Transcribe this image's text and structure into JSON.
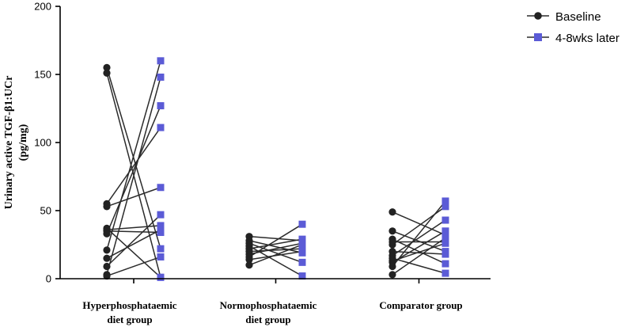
{
  "chart_data": {
    "type": "scatter",
    "title": "",
    "ylabel_line1": "Urinary active TGF-β1:UCr",
    "ylabel_line2": "(pg/mg)",
    "xlabel": "",
    "ylim": [
      0,
      200
    ],
    "yticks": [
      "0",
      "50",
      "100",
      "150",
      "200"
    ],
    "categories": [
      {
        "line1": "Hyperphosphataemic",
        "line2": "diet group"
      },
      {
        "line1": "Normophosphataemic",
        "line2": "diet group"
      },
      {
        "line1": "Comparator group",
        "line2": ""
      }
    ],
    "legend": {
      "position": "top-right",
      "entries": [
        {
          "label": "Baseline",
          "marker": "circle",
          "color": "#222222"
        },
        {
          "label": "4-8wks later",
          "marker": "square",
          "color": "#5b5bd6"
        }
      ]
    },
    "series": [
      {
        "name": "Hyperphosphataemic diet group",
        "pairs": [
          [
            155,
            22
          ],
          [
            151,
            1
          ],
          [
            55,
            111
          ],
          [
            53,
            67
          ],
          [
            37,
            1
          ],
          [
            36,
            39
          ],
          [
            35,
            34
          ],
          [
            33,
            127
          ],
          [
            21,
            160
          ],
          [
            15,
            36
          ],
          [
            9,
            47
          ],
          [
            3,
            148
          ],
          [
            2,
            16
          ]
        ]
      },
      {
        "name": "Normophosphataemic diet group",
        "pairs": [
          [
            31,
            28
          ],
          [
            28,
            19
          ],
          [
            26,
            12
          ],
          [
            24,
            2
          ],
          [
            22,
            29
          ],
          [
            20,
            22
          ],
          [
            18,
            26
          ],
          [
            16,
            40
          ],
          [
            14,
            20
          ],
          [
            10,
            25
          ]
        ]
      },
      {
        "name": "Comparator group",
        "pairs": [
          [
            49,
            32
          ],
          [
            35,
            20
          ],
          [
            29,
            11
          ],
          [
            27,
            27
          ],
          [
            25,
            53
          ],
          [
            20,
            18
          ],
          [
            17,
            43
          ],
          [
            15,
            4
          ],
          [
            13,
            26
          ],
          [
            12,
            35
          ],
          [
            9,
            57
          ],
          [
            3,
            30
          ]
        ]
      }
    ]
  },
  "colors": {
    "baseline": "#222222",
    "later": "#5b5bd6",
    "line": "#2b2b2b",
    "axis": "#000000"
  }
}
